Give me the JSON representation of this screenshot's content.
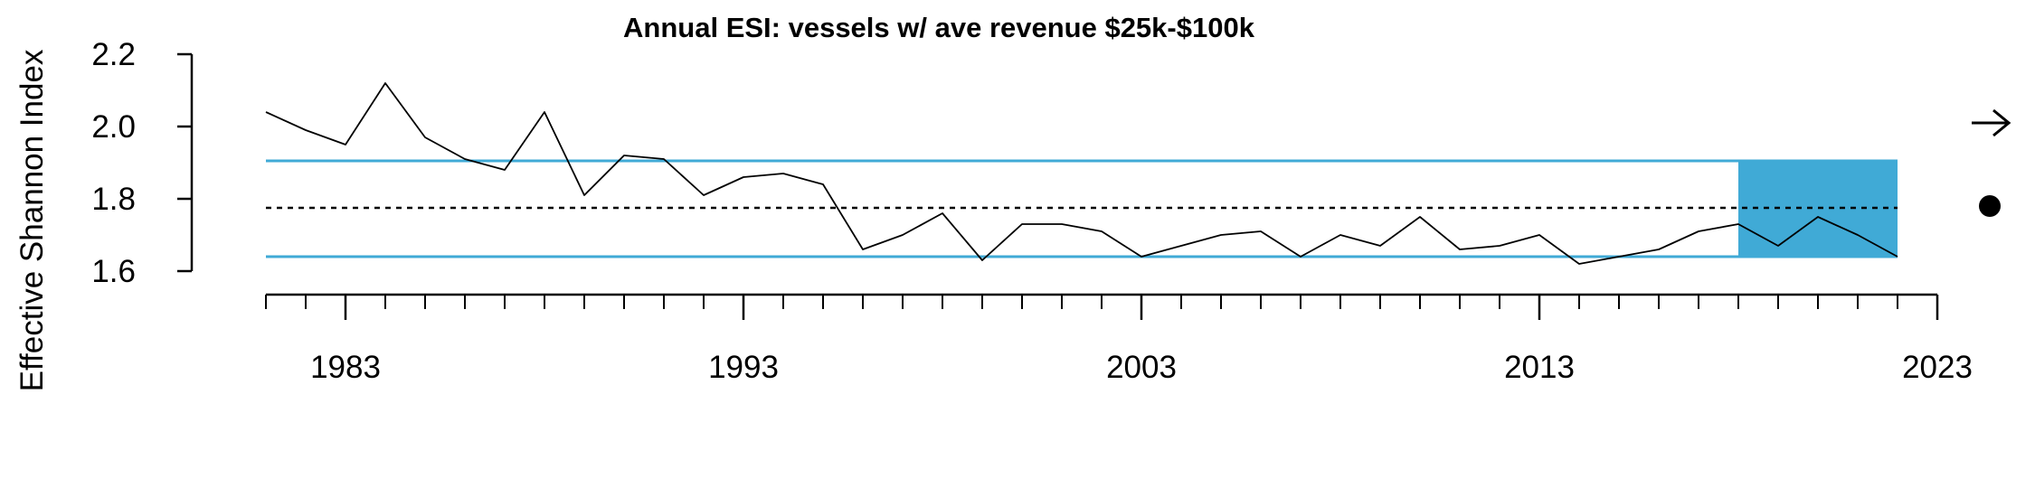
{
  "chart_data": {
    "type": "line",
    "title": "Annual ESI: vessels w/ ave revenue $25k-$100k",
    "ylabel": "Effective Shannon Index",
    "xlabel": "",
    "xlim": [
      1981,
      2023
    ],
    "ylim": [
      1.6,
      2.2
    ],
    "x_tick_labels": [
      "1983",
      "1993",
      "2003",
      "2013",
      "2023"
    ],
    "y_tick_labels": [
      "1.6",
      "1.8",
      "2.0",
      "2.2"
    ],
    "series": [
      {
        "x": [
          1981,
          1982,
          1983,
          1984,
          1985,
          1986,
          1987,
          1988,
          1989,
          1990,
          1991,
          1992,
          1993,
          1994,
          1995,
          1996,
          1997,
          1998,
          1999,
          2000,
          2001,
          2002,
          2003,
          2004,
          2005,
          2006,
          2007,
          2008,
          2009,
          2010,
          2011,
          2012,
          2013,
          2014,
          2015,
          2016,
          2017,
          2018,
          2019,
          2020,
          2021,
          2022
        ],
        "values": [
          2.04,
          1.99,
          1.95,
          2.12,
          1.97,
          1.91,
          1.88,
          2.04,
          1.81,
          1.92,
          1.91,
          1.81,
          1.86,
          1.87,
          1.84,
          1.66,
          1.7,
          1.76,
          1.63,
          1.73,
          1.73,
          1.71,
          1.64,
          1.67,
          1.7,
          1.71,
          1.64,
          1.7,
          1.67,
          1.75,
          1.66,
          1.67,
          1.7,
          1.62,
          1.64,
          1.66,
          1.71,
          1.73,
          1.67,
          1.75,
          1.7,
          1.64
        ],
        "color": "#000000"
      }
    ],
    "mean": 1.775,
    "upper_band": 1.905,
    "lower_band": 1.64,
    "band_color": "#40AAD6",
    "highlight_period": [
      2018,
      2022
    ],
    "indicators": {
      "trend": "right-arrow-icon",
      "mean_status": "filled-circle-icon"
    }
  }
}
